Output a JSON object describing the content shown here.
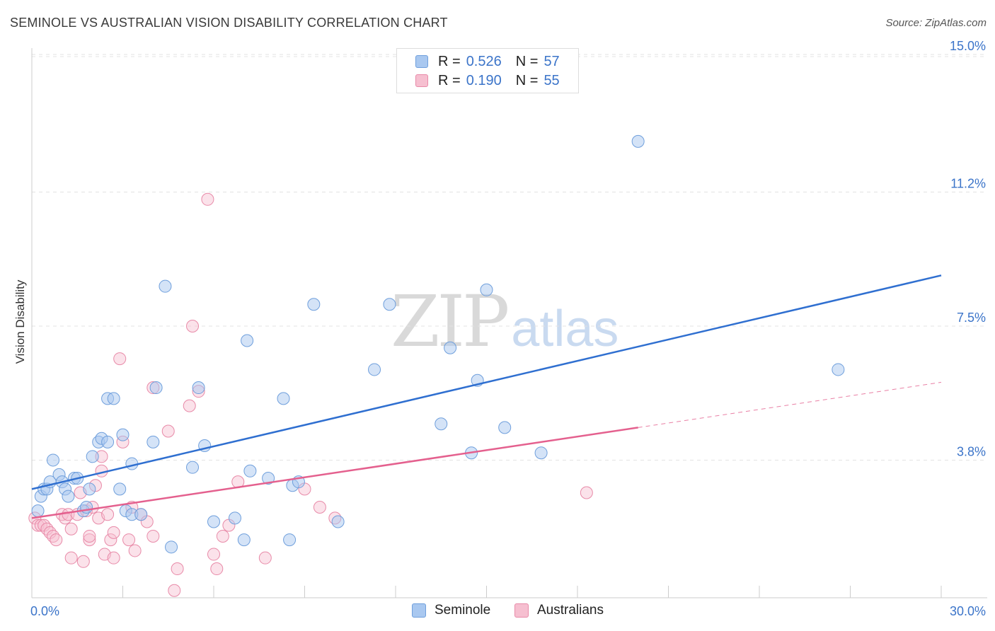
{
  "title": "SEMINOLE VS AUSTRALIAN VISION DISABILITY CORRELATION CHART",
  "source": "Source: ZipAtlas.com",
  "watermark": {
    "zip": "ZIP",
    "atlas": "atlas"
  },
  "legend": {
    "rows": [
      {
        "r_label": "R =",
        "r_value": "0.526",
        "n_label": "N =",
        "n_value": "57"
      },
      {
        "r_label": "R =",
        "r_value": "0.190",
        "n_label": "N =",
        "n_value": "55"
      }
    ]
  },
  "bottom_legend": [
    "Seminole",
    "Australians"
  ],
  "colors": {
    "seminole_fill": "#a9c8f0",
    "seminole_stroke": "#6f9fdc",
    "seminole_line": "#2f6fd0",
    "australian_fill": "#f6bfd0",
    "australian_stroke": "#e88aa8",
    "australian_line": "#e4608e",
    "tick_label": "#3b74c9",
    "grid": "#e3e3e3"
  },
  "chart_data": {
    "type": "scatter",
    "title": "SEMINOLE VS AUSTRALIAN VISION DISABILITY CORRELATION CHART",
    "xlabel": "",
    "ylabel": "Vision Disability",
    "xlim": [
      0,
      30
    ],
    "ylim": [
      0,
      15.7
    ],
    "x_tick_labels": [
      "0.0%",
      "30.0%"
    ],
    "x_tick_values": [
      0,
      30
    ],
    "y_tick_labels": [
      "3.8%",
      "7.5%",
      "11.2%",
      "15.0%"
    ],
    "y_tick_values": [
      3.8,
      7.5,
      11.2,
      15.0
    ],
    "series": [
      {
        "name": "Seminole",
        "trend": {
          "x": [
            0,
            30
          ],
          "y": [
            3.0,
            8.9
          ]
        },
        "points": [
          [
            0.2,
            2.4
          ],
          [
            0.3,
            2.8
          ],
          [
            0.4,
            3.0
          ],
          [
            0.5,
            3.0
          ],
          [
            0.6,
            3.2
          ],
          [
            0.7,
            3.8
          ],
          [
            0.9,
            3.4
          ],
          [
            1.0,
            3.2
          ],
          [
            1.1,
            3.0
          ],
          [
            1.2,
            2.8
          ],
          [
            1.4,
            3.3
          ],
          [
            1.5,
            3.3
          ],
          [
            1.7,
            2.4
          ],
          [
            1.8,
            2.5
          ],
          [
            1.9,
            3.0
          ],
          [
            2.0,
            3.9
          ],
          [
            2.2,
            4.3
          ],
          [
            2.3,
            4.4
          ],
          [
            2.5,
            4.3
          ],
          [
            2.5,
            5.5
          ],
          [
            2.7,
            5.5
          ],
          [
            2.9,
            3.0
          ],
          [
            3.0,
            4.5
          ],
          [
            3.1,
            2.4
          ],
          [
            3.3,
            2.3
          ],
          [
            3.3,
            3.7
          ],
          [
            3.6,
            2.3
          ],
          [
            4.0,
            4.3
          ],
          [
            4.1,
            5.8
          ],
          [
            4.4,
            8.6
          ],
          [
            4.6,
            1.4
          ],
          [
            5.3,
            3.6
          ],
          [
            5.5,
            5.8
          ],
          [
            5.7,
            4.2
          ],
          [
            6.0,
            2.1
          ],
          [
            6.7,
            2.2
          ],
          [
            7.0,
            1.6
          ],
          [
            7.1,
            7.1
          ],
          [
            7.2,
            3.5
          ],
          [
            7.8,
            3.3
          ],
          [
            8.3,
            5.5
          ],
          [
            8.5,
            1.6
          ],
          [
            8.6,
            3.1
          ],
          [
            8.8,
            3.2
          ],
          [
            9.3,
            8.1
          ],
          [
            10.1,
            2.1
          ],
          [
            11.3,
            6.3
          ],
          [
            11.8,
            8.1
          ],
          [
            13.5,
            4.8
          ],
          [
            13.8,
            6.9
          ],
          [
            14.5,
            4.0
          ],
          [
            14.7,
            6.0
          ],
          [
            15.0,
            8.5
          ],
          [
            15.6,
            4.7
          ],
          [
            16.8,
            4.0
          ],
          [
            20.0,
            12.6
          ],
          [
            26.6,
            6.3
          ]
        ]
      },
      {
        "name": "Australians",
        "trend": {
          "x": [
            0,
            20
          ],
          "y": [
            2.2,
            4.7
          ]
        },
        "trend_dashed": {
          "x": [
            20,
            30
          ],
          "y": [
            4.7,
            5.95
          ]
        },
        "points": [
          [
            0.1,
            2.2
          ],
          [
            0.2,
            2.0
          ],
          [
            0.3,
            2.0
          ],
          [
            0.4,
            2.0
          ],
          [
            0.5,
            1.9
          ],
          [
            0.6,
            1.8
          ],
          [
            0.7,
            1.7
          ],
          [
            0.8,
            1.6
          ],
          [
            1.0,
            2.3
          ],
          [
            1.1,
            2.2
          ],
          [
            1.2,
            2.3
          ],
          [
            1.3,
            1.9
          ],
          [
            1.3,
            1.1
          ],
          [
            1.5,
            2.3
          ],
          [
            1.6,
            2.9
          ],
          [
            1.7,
            1.0
          ],
          [
            1.8,
            2.4
          ],
          [
            1.9,
            1.6
          ],
          [
            1.9,
            1.7
          ],
          [
            2.0,
            2.5
          ],
          [
            2.1,
            3.1
          ],
          [
            2.2,
            2.2
          ],
          [
            2.3,
            3.9
          ],
          [
            2.3,
            3.5
          ],
          [
            2.4,
            1.2
          ],
          [
            2.5,
            2.3
          ],
          [
            2.6,
            1.6
          ],
          [
            2.7,
            1.1
          ],
          [
            2.7,
            1.8
          ],
          [
            2.9,
            6.6
          ],
          [
            3.0,
            4.3
          ],
          [
            3.2,
            1.6
          ],
          [
            3.3,
            2.5
          ],
          [
            3.4,
            1.3
          ],
          [
            3.6,
            2.3
          ],
          [
            3.8,
            2.1
          ],
          [
            4.0,
            5.8
          ],
          [
            4.0,
            1.7
          ],
          [
            4.5,
            4.6
          ],
          [
            4.7,
            0.2
          ],
          [
            4.8,
            0.8
          ],
          [
            5.2,
            5.3
          ],
          [
            5.3,
            7.5
          ],
          [
            5.5,
            5.7
          ],
          [
            5.8,
            11.0
          ],
          [
            6.0,
            1.2
          ],
          [
            6.1,
            0.8
          ],
          [
            6.3,
            1.7
          ],
          [
            6.5,
            2.0
          ],
          [
            6.8,
            3.2
          ],
          [
            7.7,
            1.1
          ],
          [
            9.0,
            3.0
          ],
          [
            9.5,
            2.5
          ],
          [
            10.0,
            2.2
          ],
          [
            18.3,
            2.9
          ]
        ]
      }
    ]
  }
}
